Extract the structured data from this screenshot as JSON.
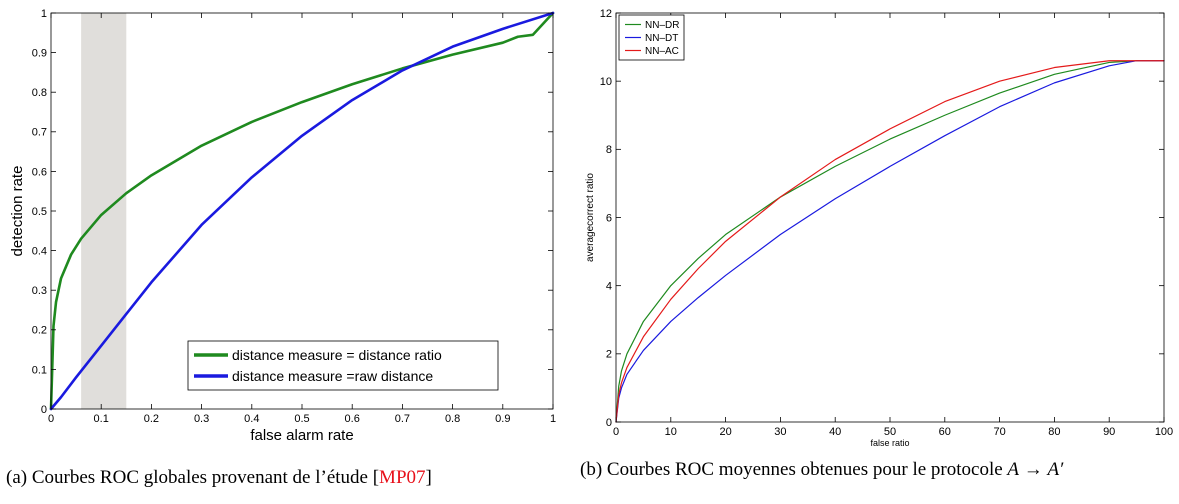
{
  "chart_data": [
    {
      "type": "line",
      "title": "",
      "xlabel": "false alarm rate",
      "ylabel": "detection rate",
      "xlim": [
        0,
        1
      ],
      "ylim": [
        0,
        1
      ],
      "xticks": [
        0,
        0.1,
        0.2,
        0.3,
        0.4,
        0.5,
        0.6,
        0.7,
        0.8,
        0.9,
        1
      ],
      "xtick_labels": [
        "0",
        "0.1",
        "0.2",
        "0.3",
        "0.4",
        "0.5",
        "0.6",
        "0.7",
        "0.8",
        "0.9",
        "1"
      ],
      "yticks": [
        0,
        0.1,
        0.2,
        0.3,
        0.4,
        0.5,
        0.6,
        0.7,
        0.8,
        0.9,
        1
      ],
      "ytick_labels": [
        "0",
        "0.1",
        "0.2",
        "0.3",
        "0.4",
        "0.5",
        "0.6",
        "0.7",
        "0.8",
        "0.9",
        "1"
      ],
      "grid": false,
      "legend_position": "bottom-right",
      "shaded_region": {
        "x_from": 0.06,
        "x_to": 0.15,
        "color": "#e0dedb"
      },
      "series": [
        {
          "name": "distance measure = distance ratio",
          "color": "#1f8a1f",
          "x": [
            0,
            0.005,
            0.01,
            0.02,
            0.04,
            0.06,
            0.1,
            0.15,
            0.2,
            0.3,
            0.4,
            0.5,
            0.6,
            0.7,
            0.8,
            0.9,
            0.93,
            0.96,
            1
          ],
          "y": [
            0,
            0.21,
            0.27,
            0.33,
            0.39,
            0.43,
            0.49,
            0.545,
            0.59,
            0.665,
            0.725,
            0.775,
            0.82,
            0.86,
            0.895,
            0.925,
            0.94,
            0.945,
            1
          ]
        },
        {
          "name": "distance measure =raw distance",
          "color": "#1a1adf",
          "x": [
            0,
            0.02,
            0.05,
            0.1,
            0.15,
            0.2,
            0.3,
            0.4,
            0.5,
            0.6,
            0.7,
            0.8,
            0.9,
            1
          ],
          "y": [
            0,
            0.03,
            0.08,
            0.16,
            0.24,
            0.32,
            0.465,
            0.585,
            0.69,
            0.78,
            0.855,
            0.915,
            0.96,
            1
          ]
        }
      ]
    },
    {
      "type": "line",
      "title": "",
      "xlabel": "false ratio",
      "ylabel": "averagecorrect ratio",
      "xlim": [
        0,
        100
      ],
      "ylim": [
        0,
        12
      ],
      "xticks": [
        0,
        10,
        20,
        30,
        40,
        50,
        60,
        70,
        80,
        90,
        100
      ],
      "xtick_labels": [
        "0",
        "10",
        "20",
        "30",
        "40",
        "50",
        "60",
        "70",
        "80",
        "90",
        "100"
      ],
      "yticks": [
        0,
        2,
        4,
        6,
        8,
        10,
        12
      ],
      "ytick_labels": [
        "0",
        "2",
        "4",
        "6",
        "8",
        "10",
        "12"
      ],
      "grid": false,
      "legend_position": "top-left",
      "series": [
        {
          "name": "NN–DR",
          "color": "#1f8a1f",
          "x": [
            0,
            0.5,
            1,
            2,
            5,
            10,
            15,
            20,
            30,
            40,
            50,
            60,
            70,
            80,
            90,
            95,
            100
          ],
          "y": [
            0,
            1.05,
            1.5,
            2.0,
            2.95,
            4.0,
            4.8,
            5.5,
            6.6,
            7.5,
            8.3,
            9.0,
            9.65,
            10.2,
            10.55,
            10.6,
            10.6
          ]
        },
        {
          "name": "NN–DT",
          "color": "#1a1adf",
          "x": [
            0,
            0.5,
            1,
            2,
            5,
            10,
            15,
            20,
            30,
            40,
            50,
            60,
            70,
            80,
            90,
            95,
            100
          ],
          "y": [
            0,
            0.7,
            1.0,
            1.4,
            2.1,
            2.95,
            3.65,
            4.3,
            5.5,
            6.55,
            7.5,
            8.4,
            9.25,
            9.95,
            10.45,
            10.6,
            10.6
          ]
        },
        {
          "name": "NN–AC",
          "color": "#e41a1a",
          "x": [
            0,
            0.5,
            1,
            2,
            5,
            10,
            15,
            20,
            30,
            40,
            50,
            60,
            70,
            80,
            90,
            95,
            100
          ],
          "y": [
            0,
            0.8,
            1.15,
            1.6,
            2.5,
            3.6,
            4.5,
            5.3,
            6.6,
            7.7,
            8.6,
            9.4,
            10.0,
            10.4,
            10.6,
            10.6,
            10.6
          ]
        }
      ]
    }
  ],
  "captions": {
    "a": {
      "label": "(a)",
      "text": "Courbes ROC globales provenant de l’étude",
      "open_bracket": "[",
      "citation": "MP07",
      "close_bracket": "]"
    },
    "b": {
      "label": "(b)",
      "text": "Courbes ROC moyennes obtenues pour le protocole",
      "math_from": "A",
      "arrow": "→",
      "math_to": "A′"
    }
  }
}
